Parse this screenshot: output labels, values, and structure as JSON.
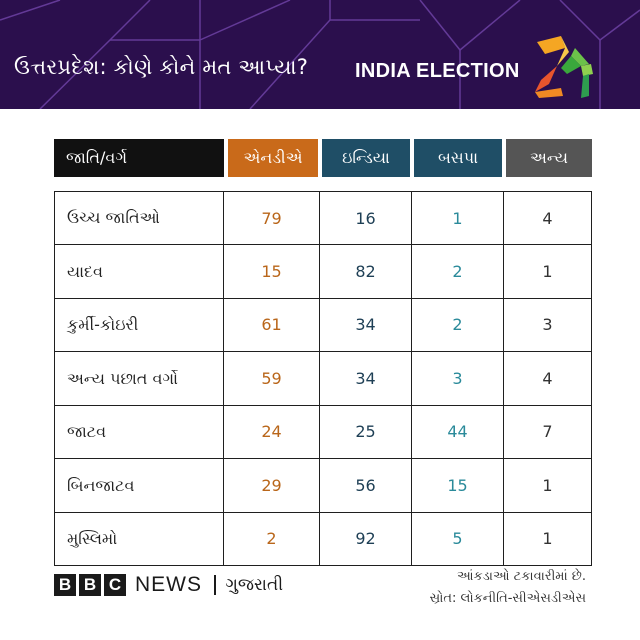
{
  "header": {
    "headline": "ઉત્તરપ્રદેશ: કોણે કોને મત આપ્યા?",
    "brand": "INDIA ELECTION",
    "logo_text": "24"
  },
  "colors": {
    "banner_bg": "#2b0f4d",
    "category_header": "#111111",
    "nda": "#c96a1a",
    "india": "#1f4e66",
    "bsp": "#1f4e66",
    "others": "#555555",
    "nda_value": "#b9661a",
    "india_value": "#1e3f55",
    "bsp_value": "#2a8a9a",
    "others_value": "#333333"
  },
  "table": {
    "columns": [
      "જાતિ/વર્ગ",
      "એનડીએ",
      "ઇન્ડિયા",
      "બસપા",
      "અન્ય"
    ],
    "rows": [
      {
        "label": "ઉચ્ચ જાતિઓ",
        "nda": "79",
        "india": "16",
        "bsp": "1",
        "others": "4"
      },
      {
        "label": "યાદવ",
        "nda": "15",
        "india": "82",
        "bsp": "2",
        "others": "1"
      },
      {
        "label": "કુર્મી-કોઇરી",
        "nda": "61",
        "india": "34",
        "bsp": "2",
        "others": "3"
      },
      {
        "label": "અન્ય પછાત વર્ગો",
        "nda": "59",
        "india": "34",
        "bsp": "3",
        "others": "4"
      },
      {
        "label": "જાટવ",
        "nda": "24",
        "india": "25",
        "bsp": "44",
        "others": "7"
      },
      {
        "label": "બિનજાટવ",
        "nda": "29",
        "india": "56",
        "bsp": "15",
        "others": "1"
      },
      {
        "label": "મુસ્લિમો",
        "nda": "2",
        "india": "92",
        "bsp": "5",
        "others": "1"
      }
    ]
  },
  "footer": {
    "bbc_letters": [
      "B",
      "B",
      "C"
    ],
    "news": "NEWS",
    "language": "ગુજરાતી",
    "note": "આંકડાઓ ટકાવારીમાં છે.",
    "source": "સ્રોત: લોકનીતિ-સીએસડીએસ"
  }
}
